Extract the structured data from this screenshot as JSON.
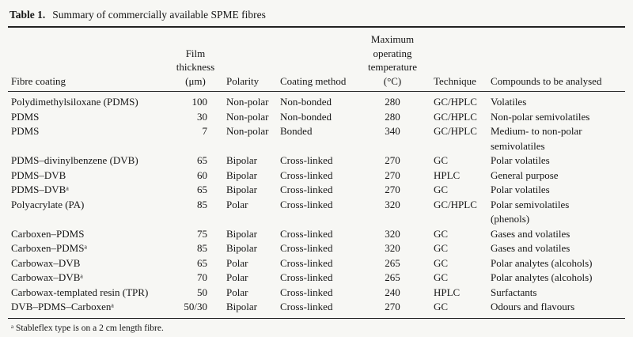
{
  "colors": {
    "background": "#f7f7f4",
    "text": "#161616",
    "rule": "#222222"
  },
  "table": {
    "label": "Table 1.",
    "title": "Summary of commercially available SPME fibres",
    "columns": [
      {
        "key": "fibre-coating",
        "label": "Fibre coating"
      },
      {
        "key": "film-thickness",
        "label": "Film\nthickness\n(μm)"
      },
      {
        "key": "polarity",
        "label": "Polarity"
      },
      {
        "key": "coating-method",
        "label": "Coating method"
      },
      {
        "key": "max-operating-temperature",
        "label": "Maximum\noperating\ntemperature\n(°C)"
      },
      {
        "key": "technique",
        "label": "Technique"
      },
      {
        "key": "compounds",
        "label": "Compounds to be analysed"
      }
    ],
    "rows": [
      [
        "Polydimethylsiloxane (PDMS)",
        "100",
        "Non-polar",
        "Non-bonded",
        "280",
        "GC/HPLC",
        "Volatiles"
      ],
      [
        "PDMS",
        "30",
        "Non-polar",
        "Non-bonded",
        "280",
        "GC/HPLC",
        "Non-polar semivolatiles"
      ],
      [
        "PDMS",
        "7",
        "Non-polar",
        "Bonded",
        "340",
        "GC/HPLC",
        "Medium- to non-polar\nsemivolatiles"
      ],
      [
        "PDMS–divinylbenzene (DVB)",
        "65",
        "Bipolar",
        "Cross-linked",
        "270",
        "GC",
        "Polar volatiles"
      ],
      [
        "PDMS–DVB",
        "60",
        "Bipolar",
        "Cross-linked",
        "270",
        "HPLC",
        "General purpose"
      ],
      [
        "PDMS–DVBᵃ",
        "65",
        "Bipolar",
        "Cross-linked",
        "270",
        "GC",
        "Polar volatiles"
      ],
      [
        "Polyacrylate (PA)",
        "85",
        "Polar",
        "Cross-linked",
        "320",
        "GC/HPLC",
        "Polar semivolatiles\n(phenols)"
      ],
      [
        "Carboxen–PDMS",
        "75",
        "Bipolar",
        "Cross-linked",
        "320",
        "GC",
        "Gases and volatiles"
      ],
      [
        "Carboxen–PDMSᵃ",
        "85",
        "Bipolar",
        "Cross-linked",
        "320",
        "GC",
        "Gases and volatiles"
      ],
      [
        "Carbowax–DVB",
        "65",
        "Polar",
        "Cross-linked",
        "265",
        "GC",
        "Polar analytes (alcohols)"
      ],
      [
        "Carbowax–DVBᵃ",
        "70",
        "Polar",
        "Cross-linked",
        "265",
        "GC",
        "Polar analytes (alcohols)"
      ],
      [
        "Carbowax-templated resin (TPR)",
        "50",
        "Polar",
        "Cross-linked",
        "240",
        "HPLC",
        "Surfactants"
      ],
      [
        "DVB–PDMS–Carboxenᵃ",
        "50/30",
        "Bipolar",
        "Cross-linked",
        "270",
        "GC",
        "Odours and flavours"
      ]
    ],
    "footnote": "ᵃ Stableflex type is on a 2 cm length fibre."
  }
}
